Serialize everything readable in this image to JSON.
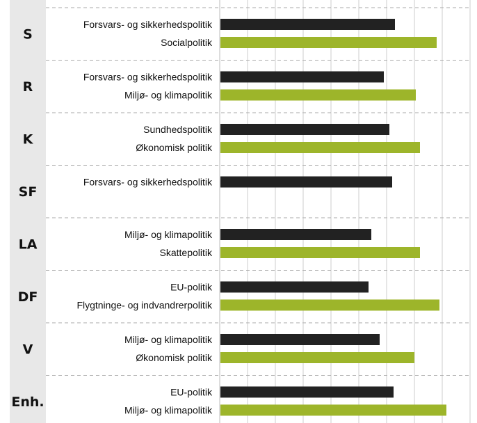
{
  "colors": {
    "party_band": "#e8e8e8",
    "dark_bar": "#222222",
    "green_bar": "#9db52a",
    "grid": "#aaaaaa",
    "text": "#111111"
  },
  "chart_data": {
    "type": "bar",
    "orientation": "horizontal",
    "title": "",
    "xlabel": "",
    "ylabel": "",
    "x_tick_labels": "none",
    "grid": "vertical lines, dashed group separators",
    "groups": [
      {
        "party": "S",
        "bars": [
          {
            "category": "Forsvars- og sikkerhedspolitik",
            "value": 63
          },
          {
            "category": "Socialpolitik",
            "value": 78
          }
        ]
      },
      {
        "party": "R",
        "bars": [
          {
            "category": "Forsvars- og sikkerhedspolitik",
            "value": 59
          },
          {
            "category": "Miljø- og klimapolitik",
            "value": 70.5
          }
        ]
      },
      {
        "party": "K",
        "bars": [
          {
            "category": "Sundhedspolitik",
            "value": 61
          },
          {
            "category": "Økonomisk politik",
            "value": 72
          }
        ]
      },
      {
        "party": "SF",
        "bars": [
          {
            "category": "Forsvars- og sikkerhedspolitik",
            "value": 62
          }
        ]
      },
      {
        "party": "LA",
        "bars": [
          {
            "category": "Miljø- og klimapolitik",
            "value": 54.5
          },
          {
            "category": "Skattepolitik",
            "value": 72
          }
        ]
      },
      {
        "party": "DF",
        "bars": [
          {
            "category": "EU-politik",
            "value": 53.5
          },
          {
            "category": "Flygtninge- og indvandrerpolitik",
            "value": 79
          }
        ]
      },
      {
        "party": "V",
        "bars": [
          {
            "category": "Miljø- og klimapolitik",
            "value": 57.5
          },
          {
            "category": "Økonomisk politik",
            "value": 70
          }
        ]
      },
      {
        "party": "Enh.",
        "bars": [
          {
            "category": "EU-politik",
            "value": 62.5
          },
          {
            "category": "Miljø- og klimapolitik",
            "value": 81.5
          }
        ]
      }
    ]
  }
}
